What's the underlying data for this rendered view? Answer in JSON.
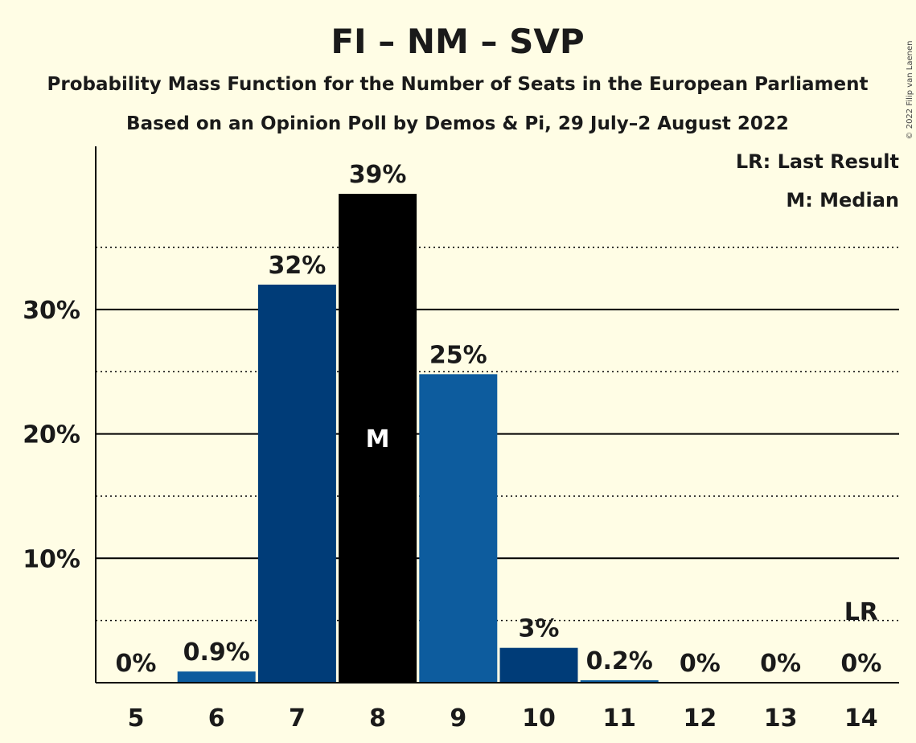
{
  "copyright": "© 2022 Filip van Laenen",
  "legend": {
    "last_result": "LR: Last Result",
    "median": "M: Median"
  },
  "chart_data": {
    "type": "bar",
    "title": "FI – NM – SVP",
    "subtitle": "Probability Mass Function for the Number of Seats in the European Parliament",
    "subtitle2": "Based on an Opinion Poll by Demos & Pi, 29 July–2 August 2022",
    "categories": [
      "5",
      "6",
      "7",
      "8",
      "9",
      "10",
      "11",
      "12",
      "13",
      "14"
    ],
    "values": [
      0,
      0.9,
      32,
      39.3,
      24.8,
      2.8,
      0.2,
      0,
      0,
      0
    ],
    "value_labels": [
      "0%",
      "0.9%",
      "32%",
      "39%",
      "25%",
      "3%",
      "0.2%",
      "0%",
      "0%",
      "0%"
    ],
    "bar_colors": [
      "#003c78",
      "#0d5c9e",
      "#003c78",
      "#000000",
      "#0d5c9e",
      "#003c78",
      "#0d5c9e",
      "#003c78",
      "#0d5c9e",
      "#003c78"
    ],
    "median_index": 3,
    "median_label": "M",
    "last_result_index": 9,
    "last_result_label": "LR",
    "y_ticks": [
      {
        "value": 10,
        "label": "10%"
      },
      {
        "value": 20,
        "label": "20%"
      },
      {
        "value": 30,
        "label": "30%"
      }
    ],
    "y_minor_ticks": [
      5,
      15,
      25,
      35
    ],
    "ylim": [
      0,
      43
    ],
    "grid": true
  }
}
